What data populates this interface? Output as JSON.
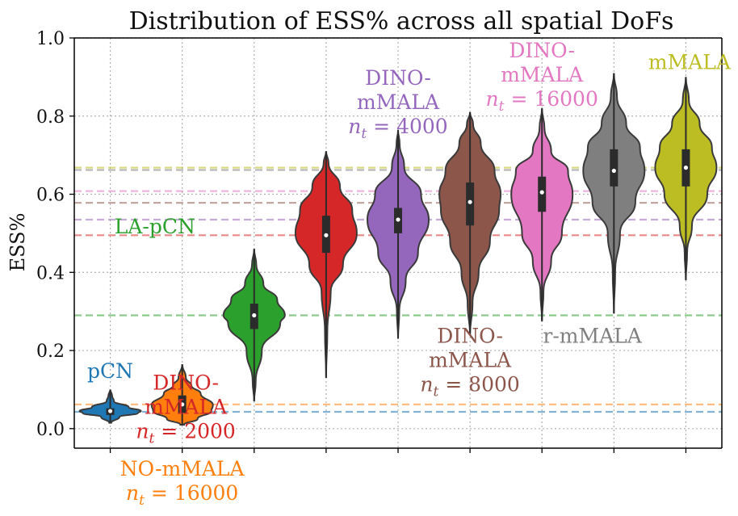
{
  "chart_data": {
    "type": "violin",
    "title": "Distribution of ESS% across all spatial DoFs",
    "xlabel": "",
    "ylabel": "ESS%",
    "ylim": [
      -0.05,
      1.0
    ],
    "yticks": [
      "0.0",
      "0.2",
      "0.4",
      "0.6",
      "0.8",
      "1.0"
    ],
    "ytick_values": [
      0.0,
      0.2,
      0.4,
      0.6,
      0.8,
      1.0
    ],
    "grid": true,
    "series": [
      {
        "name": "pCN",
        "color": "#1f77b4",
        "median": 0.045,
        "q1": 0.035,
        "q3": 0.052,
        "min": 0.015,
        "max": 0.1,
        "dist": [
          [
            0.015,
            0.03
          ],
          [
            0.03,
            0.3
          ],
          [
            0.04,
            0.9
          ],
          [
            0.045,
            1.0
          ],
          [
            0.055,
            0.6
          ],
          [
            0.07,
            0.12
          ],
          [
            0.085,
            0.06
          ],
          [
            0.1,
            0.0
          ]
        ],
        "label_lines": [
          "pCN"
        ],
        "label_anchor": "middle",
        "label_pos": [
          0.0,
          0.13
        ]
      },
      {
        "name": "NO-mMALA n_t = 16000",
        "color": "#ff7f0e",
        "median": 0.062,
        "q1": 0.04,
        "q3": 0.085,
        "min": 0.01,
        "max": 0.165,
        "dist": [
          [
            0.01,
            0.06
          ],
          [
            0.025,
            0.5
          ],
          [
            0.045,
            0.95
          ],
          [
            0.06,
            1.0
          ],
          [
            0.09,
            0.6
          ],
          [
            0.11,
            0.3
          ],
          [
            0.13,
            0.12
          ],
          [
            0.165,
            0.0
          ]
        ],
        "label_lines": [
          "NO-mMALA",
          "nt = 16000"
        ],
        "label_anchor": "middle",
        "label_pos": [
          1.0,
          -0.12
        ]
      },
      {
        "name": "LA-pCN",
        "color": "#2ca02c",
        "median": 0.29,
        "q1": 0.255,
        "q3": 0.32,
        "min": 0.07,
        "max": 0.46,
        "dist": [
          [
            0.07,
            0.0
          ],
          [
            0.12,
            0.05
          ],
          [
            0.2,
            0.25
          ],
          [
            0.27,
            0.85
          ],
          [
            0.29,
            1.0
          ],
          [
            0.33,
            0.75
          ],
          [
            0.37,
            0.3
          ],
          [
            0.42,
            0.07
          ],
          [
            0.46,
            0.0
          ]
        ],
        "label_lines": [
          "LA-pCN"
        ],
        "label_anchor": "middle",
        "label_pos": [
          0.62,
          0.5
        ]
      },
      {
        "name": "DINO-mMALA n_t = 2000",
        "color": "#d62728",
        "median": 0.495,
        "q1": 0.45,
        "q3": 0.545,
        "min": 0.13,
        "max": 0.71,
        "dist": [
          [
            0.13,
            0.0
          ],
          [
            0.25,
            0.04
          ],
          [
            0.35,
            0.15
          ],
          [
            0.42,
            0.55
          ],
          [
            0.5,
            1.0
          ],
          [
            0.56,
            0.85
          ],
          [
            0.62,
            0.45
          ],
          [
            0.68,
            0.08
          ],
          [
            0.71,
            0.0
          ]
        ],
        "label_lines": [
          "DINO-",
          "mMALA",
          "nt = 2000"
        ],
        "label_anchor": "middle",
        "label_pos": [
          1.05,
          0.1
        ]
      },
      {
        "name": "DINO-mMALA n_t = 4000",
        "color": "#9467bd",
        "median": 0.535,
        "q1": 0.5,
        "q3": 0.565,
        "min": 0.23,
        "max": 0.765,
        "dist": [
          [
            0.23,
            0.0
          ],
          [
            0.3,
            0.04
          ],
          [
            0.38,
            0.25
          ],
          [
            0.45,
            0.65
          ],
          [
            0.535,
            1.0
          ],
          [
            0.6,
            0.75
          ],
          [
            0.67,
            0.2
          ],
          [
            0.73,
            0.05
          ],
          [
            0.765,
            0.0
          ]
        ],
        "label_lines": [
          "DINO-",
          "mMALA",
          "nt = 4000"
        ],
        "label_anchor": "middle",
        "label_pos": [
          4.0,
          0.88
        ]
      },
      {
        "name": "DINO-mMALA n_t = 8000",
        "color": "#8c564b",
        "median": 0.58,
        "q1": 0.52,
        "q3": 0.63,
        "min": 0.24,
        "max": 0.81,
        "dist": [
          [
            0.24,
            0.0
          ],
          [
            0.32,
            0.08
          ],
          [
            0.4,
            0.28
          ],
          [
            0.48,
            0.65
          ],
          [
            0.56,
            0.95
          ],
          [
            0.6,
            1.0
          ],
          [
            0.66,
            0.8
          ],
          [
            0.73,
            0.35
          ],
          [
            0.78,
            0.1
          ],
          [
            0.81,
            0.0
          ]
        ],
        "label_lines": [
          "DINO-",
          "mMALA",
          "nt = 8000"
        ],
        "label_anchor": "middle",
        "label_pos": [
          5.0,
          0.22
        ]
      },
      {
        "name": "DINO-mMALA n_t = 16000",
        "color": "#e377c2",
        "median": 0.605,
        "q1": 0.555,
        "q3": 0.645,
        "min": 0.275,
        "max": 0.82,
        "dist": [
          [
            0.275,
            0.0
          ],
          [
            0.35,
            0.05
          ],
          [
            0.43,
            0.3
          ],
          [
            0.5,
            0.65
          ],
          [
            0.6,
            1.0
          ],
          [
            0.66,
            0.85
          ],
          [
            0.71,
            0.3
          ],
          [
            0.77,
            0.08
          ],
          [
            0.82,
            0.0
          ]
        ],
        "label_lines": [
          "DINO-",
          "mMALA",
          "nt = 16000"
        ],
        "label_anchor": "middle",
        "label_pos": [
          6.0,
          0.95
        ]
      },
      {
        "name": "r-mMALA",
        "color": "#7f7f7f",
        "median": 0.66,
        "q1": 0.62,
        "q3": 0.715,
        "min": 0.295,
        "max": 0.91,
        "dist": [
          [
            0.295,
            0.0
          ],
          [
            0.4,
            0.04
          ],
          [
            0.5,
            0.2
          ],
          [
            0.58,
            0.7
          ],
          [
            0.66,
            1.0
          ],
          [
            0.72,
            0.85
          ],
          [
            0.78,
            0.4
          ],
          [
            0.85,
            0.1
          ],
          [
            0.91,
            0.0
          ]
        ],
        "label_lines": [
          "r-mMALA"
        ],
        "label_anchor": "middle",
        "label_pos": [
          6.7,
          0.22
        ]
      },
      {
        "name": "mMALA",
        "color": "#bcbd22",
        "median": 0.668,
        "q1": 0.62,
        "q3": 0.715,
        "min": 0.38,
        "max": 0.9,
        "dist": [
          [
            0.38,
            0.0
          ],
          [
            0.45,
            0.04
          ],
          [
            0.52,
            0.2
          ],
          [
            0.6,
            0.7
          ],
          [
            0.668,
            1.0
          ],
          [
            0.72,
            0.85
          ],
          [
            0.78,
            0.45
          ],
          [
            0.84,
            0.1
          ],
          [
            0.9,
            0.0
          ]
        ],
        "label_lines": [
          "mMALA"
        ],
        "label_anchor": "middle",
        "label_pos": [
          8.05,
          0.92
        ]
      }
    ],
    "reference_lines": [
      {
        "value": 0.043,
        "color": "#1f77b4"
      },
      {
        "value": 0.062,
        "color": "#ff7f0e"
      },
      {
        "value": 0.29,
        "color": "#2ca02c"
      },
      {
        "value": 0.495,
        "color": "#d62728"
      },
      {
        "value": 0.535,
        "color": "#9467bd"
      },
      {
        "value": 0.578,
        "color": "#8c564b"
      },
      {
        "value": 0.608,
        "color": "#e377c2"
      },
      {
        "value": 0.662,
        "color": "#7f7f7f"
      },
      {
        "value": 0.668,
        "color": "#bcbd22"
      }
    ]
  }
}
